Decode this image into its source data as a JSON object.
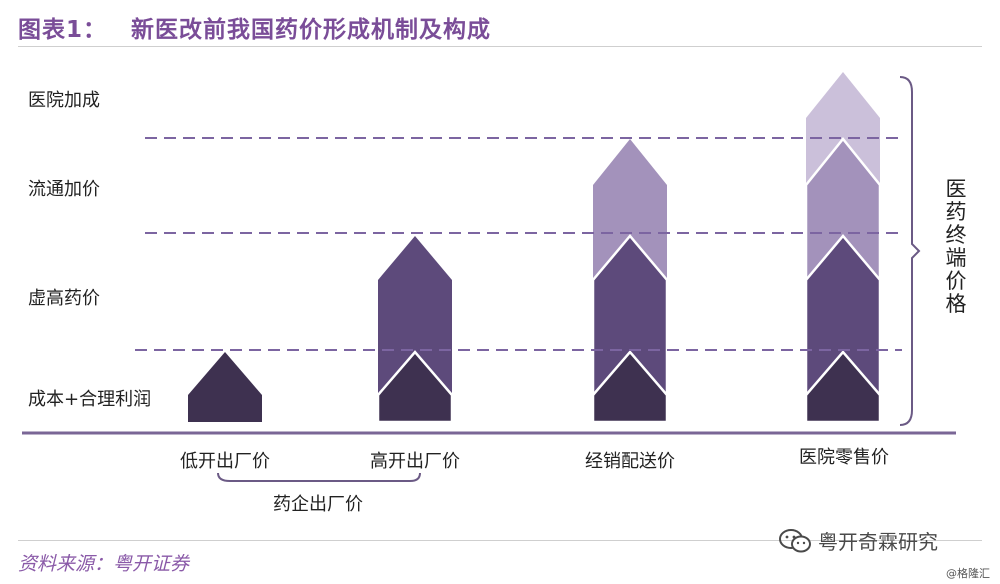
{
  "title": {
    "label": "图表1：",
    "text": "新医改前我国药价形成机制及构成"
  },
  "layers": [
    {
      "id": "hospital",
      "label": "医院加成"
    },
    {
      "id": "circulation",
      "label": "流通加价"
    },
    {
      "id": "inflated",
      "label": "虚高药价"
    },
    {
      "id": "cost",
      "label": "成本+合理利润"
    }
  ],
  "columns": [
    {
      "id": "low-factory",
      "label": "低开出厂价",
      "levels": 1
    },
    {
      "id": "high-factory",
      "label": "高开出厂价",
      "levels": 2
    },
    {
      "id": "distributor",
      "label": "经销配送价",
      "levels": 3
    },
    {
      "id": "hospital-retail",
      "label": "医院零售价",
      "levels": 4
    }
  ],
  "group_label": "药企出厂价",
  "bracket_label": "医药终端价格",
  "source": "资料来源：粤开证券",
  "watermark": {
    "icon": "wechat-icon",
    "text": "粤开奇霖研究"
  },
  "credit": "@格隆汇",
  "colors": {
    "title": "#7a4d98",
    "level1": "#3e3150",
    "level2": "#5d4a7b",
    "level3": "#a392bb",
    "level4": "#cbc0da",
    "dashed": "#7c65a1",
    "axis": "#7a6696",
    "bracket": "#6b5a85"
  }
}
